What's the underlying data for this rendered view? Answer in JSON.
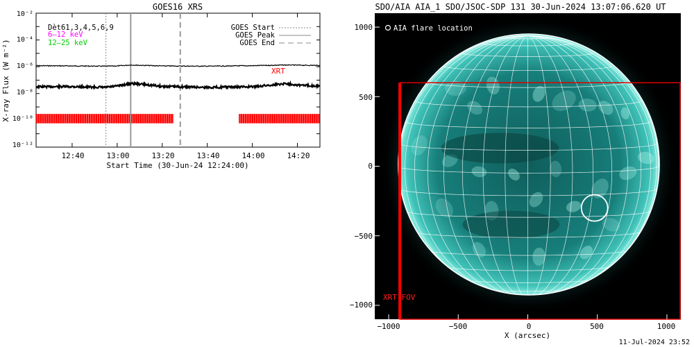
{
  "chart_data": [
    {
      "type": "line",
      "title": "GOES16 XRS",
      "xlabel": "Start Time (30-Jun-24 12:24:00)",
      "ylabel": "X-ray Flux (W m⁻²)",
      "yscale": "log",
      "ylim": [
        1e-12,
        0.01
      ],
      "xlim": [
        "12:24",
        "14:30"
      ],
      "x_ticks": [
        "12:40",
        "13:00",
        "13:20",
        "13:40",
        "14:00",
        "14:20"
      ],
      "y_ticks": [
        "10⁻²",
        "10⁻⁴",
        "10⁻⁶",
        "10⁻⁸",
        "10⁻¹⁰",
        "10⁻¹²"
      ],
      "legend_top_left": [
        "Dèt61,3,4,5,6,9",
        "6–12 keV",
        "12–25 keV"
      ],
      "legend_top_right": [
        "GOES Start",
        "GOES Peak",
        "GOES End"
      ],
      "annotation": "XRT",
      "events": {
        "start": "12:55",
        "peak": "13:06",
        "end": "13:28"
      },
      "series": [
        {
          "name": "12–25 keV",
          "x": [
            "12:24",
            "12:40",
            "12:55",
            "13:00",
            "13:06",
            "13:20",
            "13:40",
            "14:00",
            "14:15",
            "14:30"
          ],
          "y": [
            1.2e-06,
            1.15e-06,
            1.1e-06,
            1.15e-06,
            1.35e-06,
            1.15e-06,
            1.1e-06,
            1.2e-06,
            1.35e-06,
            1.25e-06
          ]
        },
        {
          "name": "6–12 keV",
          "x": [
            "12:24",
            "12:40",
            "12:55",
            "13:00",
            "13:06",
            "13:10",
            "13:20",
            "13:40",
            "14:00",
            "14:15",
            "14:20",
            "14:30"
          ],
          "y": [
            3.2e-08,
            3.3e-08,
            2.9e-08,
            3.6e-08,
            5.6e-08,
            5.2e-08,
            3.4e-08,
            2.9e-08,
            3.2e-08,
            5.6e-08,
            4.4e-08,
            3.6e-08
          ]
        }
      ],
      "xrt_coverage": [
        [
          "12:24",
          "13:25"
        ],
        [
          "13:54",
          "14:30"
        ]
      ],
      "colors": {
        "series_a": "#000000",
        "series_b": "#000000",
        "xrt": "#ff0000",
        "legend_6_12": "#ff00ff",
        "legend_12_25": "#00cc00"
      }
    },
    {
      "type": "image",
      "title": "SDO/AIA AIA_1 SDO/JSOC-SDP 131 30-Jun-2024 13:07:06.620 UT",
      "xlabel": "X (arcsec)",
      "xlim": [
        -1100,
        1100
      ],
      "ylim": [
        -1100,
        1100
      ],
      "x_ticks": [
        "−1000",
        "−500",
        "0",
        "500",
        "1000"
      ],
      "y_ticks": [
        "1000",
        "500",
        "0",
        "−500",
        "−1000"
      ],
      "legend": "AIA flare location",
      "flare_location_arcsec": [
        480,
        -300
      ],
      "solar_radius_arcsec": 940,
      "fov_label": "XRT FOV",
      "fov_arcsec": {
        "x": [
          -920,
          1100
        ],
        "y": [
          -1100,
          600
        ]
      },
      "colors": {
        "disk": "#1a8f8c",
        "bright": "#aef7ee",
        "fov": "#e00000"
      }
    }
  ],
  "footer": {
    "timestamp": "11-Jul-2024 23:52"
  }
}
